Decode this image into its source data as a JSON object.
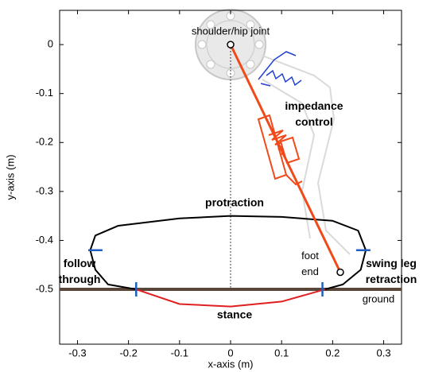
{
  "chart_data": {
    "type": "line",
    "x_label": "x-axis (m)",
    "y_label": "y-axis (m)",
    "xlim": [
      -0.335,
      0.335
    ],
    "ylim": [
      -0.612,
      0.07
    ],
    "xticks": [
      -0.3,
      -0.2,
      -0.1,
      0,
      0.1,
      0.2,
      0.3
    ],
    "yticks": [
      0,
      -0.1,
      -0.2,
      -0.3,
      -0.4,
      -0.5
    ],
    "series": [
      {
        "color": "#5a4638",
        "style": "ground",
        "x": [
          -0.335,
          0.335
        ],
        "y": [
          -0.5,
          -0.5
        ]
      },
      {
        "color": "#000000",
        "style": "dotted",
        "x": [
          0,
          0
        ],
        "y": [
          0,
          -0.5
        ]
      },
      {
        "color": "#000000",
        "style": "solid",
        "x": [
          -0.185,
          -0.24,
          -0.265,
          -0.275,
          -0.265,
          -0.22,
          -0.1,
          0,
          0.1,
          0.2,
          0.25,
          0.265,
          0.255,
          0.22,
          0.185
        ],
        "y": [
          -0.5,
          -0.49,
          -0.46,
          -0.42,
          -0.39,
          -0.37,
          -0.355,
          -0.35,
          -0.352,
          -0.36,
          -0.38,
          -0.42,
          -0.46,
          -0.49,
          -0.5
        ]
      },
      {
        "color": "#e02020",
        "style": "solid",
        "x": [
          0.185,
          0.1,
          0,
          -0.1,
          -0.185
        ],
        "y": [
          -0.5,
          -0.525,
          -0.535,
          -0.53,
          -0.5
        ]
      },
      {
        "color": "#f04a1a",
        "style": "leg",
        "x": [
          0,
          0.215
        ],
        "y": [
          0,
          -0.465
        ]
      }
    ],
    "markers": {
      "color": "#1f5fbf",
      "x": [
        -0.265,
        0.26,
        -0.185,
        0.18
      ],
      "y": [
        -0.42,
        -0.42,
        -0.5,
        -0.5
      ]
    },
    "annotations": [
      {
        "text": "shoulder/hip joint"
      },
      {
        "text": "impedance\ncontrol"
      },
      {
        "text": "protraction"
      },
      {
        "text": "follow\nthrough"
      },
      {
        "text": "foot\nend"
      },
      {
        "text": "swing leg\nretraction"
      },
      {
        "text": "ground"
      },
      {
        "text": "stance"
      }
    ]
  }
}
